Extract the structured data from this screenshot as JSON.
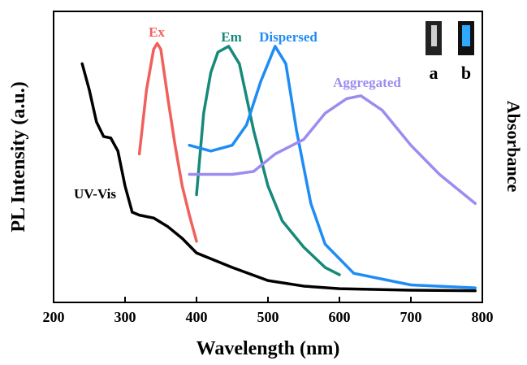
{
  "chart_data": {
    "type": "line",
    "x_label": "Wavelength (nm)",
    "y_label": "PL Intensity (a.u.)",
    "y2_label": "Absorbance",
    "xlim": [
      200,
      800
    ],
    "xticks": [
      200,
      300,
      400,
      500,
      600,
      700,
      800
    ],
    "ylim": [
      0,
      1
    ],
    "annotations": [
      "a",
      "b"
    ],
    "series": [
      {
        "name": "UV-Vis",
        "color": "#000000",
        "x": [
          240,
          250,
          260,
          270,
          280,
          290,
          300,
          310,
          320,
          340,
          360,
          380,
          400,
          450,
          500,
          550,
          600,
          700,
          790
        ],
        "values": [
          0.82,
          0.73,
          0.62,
          0.57,
          0.565,
          0.52,
          0.4,
          0.31,
          0.3,
          0.29,
          0.26,
          0.22,
          0.17,
          0.12,
          0.075,
          0.056,
          0.047,
          0.042,
          0.04
        ]
      },
      {
        "name": "Ex",
        "color": "#f0605c",
        "x": [
          320,
          330,
          340,
          345,
          350,
          360,
          370,
          380,
          390,
          400
        ],
        "values": [
          0.51,
          0.73,
          0.87,
          0.89,
          0.87,
          0.7,
          0.54,
          0.4,
          0.3,
          0.21
        ]
      },
      {
        "name": "Em",
        "color": "#17897a",
        "x": [
          400,
          410,
          420,
          430,
          445,
          460,
          480,
          500,
          520,
          550,
          580,
          600
        ],
        "values": [
          0.37,
          0.65,
          0.79,
          0.86,
          0.88,
          0.82,
          0.59,
          0.4,
          0.28,
          0.19,
          0.12,
          0.095
        ]
      },
      {
        "name": "Dispersed",
        "color": "#1e8cf5",
        "x": [
          390,
          420,
          450,
          470,
          490,
          510,
          525,
          540,
          560,
          580,
          620,
          700,
          790
        ],
        "values": [
          0.54,
          0.52,
          0.54,
          0.61,
          0.76,
          0.88,
          0.82,
          0.59,
          0.34,
          0.2,
          0.1,
          0.06,
          0.05
        ]
      },
      {
        "name": "Aggregated",
        "color": "#9d8bf0",
        "x": [
          390,
          450,
          480,
          510,
          550,
          580,
          610,
          630,
          660,
          700,
          740,
          790
        ],
        "values": [
          0.44,
          0.44,
          0.45,
          0.51,
          0.56,
          0.65,
          0.7,
          0.71,
          0.66,
          0.54,
          0.44,
          0.34
        ]
      }
    ]
  }
}
